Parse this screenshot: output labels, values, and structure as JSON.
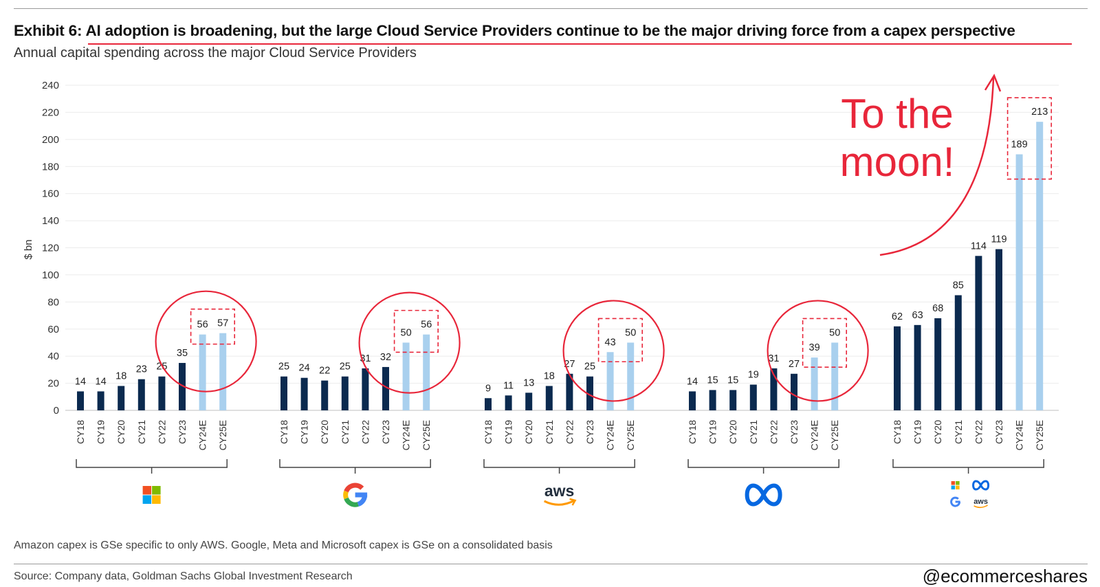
{
  "title": "Exhibit 6: AI adoption is broadening, but the large Cloud Service Providers continue to be the major driving force from a capex perspective",
  "subtitle": "Annual capital spending across the major Cloud Service Providers",
  "annotation": {
    "line1": "To the",
    "line2": "moon!",
    "color": "#e8263a"
  },
  "footnote": "Amazon capex is GSe specific to only AWS. Google, Meta and Microsoft capex is GSe on a consolidated basis",
  "source": "Source: Company data, Goldman Sachs Global Investment Research",
  "handle": "@ecommerceshares",
  "colors": {
    "actual": "#0b2a4f",
    "estimate": "#a9d0ee",
    "highlight": "#e8263a"
  },
  "chart_data": {
    "type": "bar",
    "ylabel": "$ bn",
    "ylim": [
      0,
      240
    ],
    "yticks": [
      0,
      20,
      40,
      60,
      80,
      100,
      120,
      140,
      160,
      180,
      200,
      220,
      240
    ],
    "categories": [
      "CY18",
      "CY19",
      "CY20",
      "CY21",
      "CY22",
      "CY23",
      "CY24E",
      "CY25E"
    ],
    "estimate_categories": [
      "CY24E",
      "CY25E"
    ],
    "groups": [
      {
        "logo": "microsoft-logo",
        "values": [
          14,
          14,
          18,
          23,
          25,
          35,
          56,
          57
        ]
      },
      {
        "logo": "google-logo",
        "values": [
          25,
          24,
          22,
          25,
          31,
          32,
          50,
          56
        ]
      },
      {
        "logo": "aws-logo",
        "logo_text": "aws",
        "values": [
          9,
          11,
          13,
          18,
          27,
          25,
          43,
          50
        ]
      },
      {
        "logo": "meta-logo",
        "values": [
          14,
          15,
          15,
          19,
          31,
          27,
          39,
          50
        ]
      },
      {
        "logo": "combined-logo",
        "logo_text": "aws",
        "values": [
          62,
          63,
          68,
          85,
          114,
          119,
          189,
          213
        ]
      }
    ]
  }
}
